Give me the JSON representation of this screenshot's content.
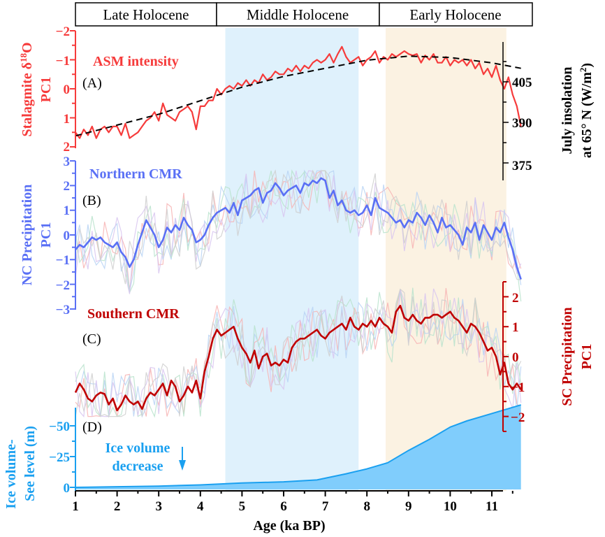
{
  "chart_data": {
    "type": "line",
    "x": {
      "label": "Age (ka BP)",
      "range": [
        1,
        11.7
      ],
      "ticks": [
        "1",
        "2",
        "3",
        "4",
        "5",
        "6",
        "7",
        "8",
        "9",
        "10",
        "11"
      ]
    },
    "periods": [
      {
        "label": "Late Holocene",
        "range": [
          1,
          4.4
        ]
      },
      {
        "label": "Middle Holocene",
        "range": [
          4.4,
          8.3
        ]
      },
      {
        "label": "Early Holocene",
        "range": [
          8.3,
          11.3
        ]
      }
    ],
    "shaded_bands": [
      {
        "name": "middle-band",
        "range": [
          4.6,
          7.8
        ],
        "color": "#dff1fc"
      },
      {
        "name": "early-band",
        "range": [
          8.45,
          11.35
        ],
        "color": "#fbf2e2"
      }
    ],
    "panels": [
      {
        "id": "A",
        "panel_label": "(A)",
        "series_label": "ASM intensity",
        "left_axis": {
          "title_line1": "Stalagmite δ18O",
          "title_line1_main": "Stalagmite δ",
          "title_line1_sup": "18",
          "title_line1_end": "O",
          "title_line2": "PC1",
          "range": [
            -2,
            2
          ],
          "inverted": true,
          "ticks": [
            "−2",
            "−1",
            "0",
            "1",
            "2"
          ],
          "color": "#f63b3b"
        },
        "right_axis": {
          "title_line1": "July insolation",
          "title_line2_main": "at 65° N (W/m",
          "title_line2_sup": "2",
          "title_line2_end": ")",
          "range": [
            370,
            420
          ],
          "ticks": [
            "405",
            "390",
            "375"
          ],
          "color": "#000000"
        },
        "series": [
          {
            "name": "Stalagmite δ18O PC1",
            "color": "#f63b3b",
            "x": [
              1.0,
              1.1,
              1.2,
              1.3,
              1.4,
              1.5,
              1.6,
              1.7,
              1.8,
              1.9,
              2.0,
              2.1,
              2.2,
              2.3,
              2.4,
              2.5,
              2.6,
              2.7,
              2.8,
              2.9,
              3.0,
              3.1,
              3.2,
              3.3,
              3.4,
              3.5,
              3.6,
              3.7,
              3.8,
              3.9,
              4.0,
              4.1,
              4.2,
              4.3,
              4.4,
              4.5,
              4.6,
              4.7,
              4.8,
              4.9,
              5.0,
              5.1,
              5.2,
              5.3,
              5.4,
              5.5,
              5.6,
              5.7,
              5.8,
              5.9,
              6.0,
              6.1,
              6.2,
              6.3,
              6.4,
              6.5,
              6.6,
              6.7,
              6.8,
              6.9,
              7.0,
              7.1,
              7.2,
              7.3,
              7.4,
              7.5,
              7.6,
              7.7,
              7.8,
              7.9,
              8.0,
              8.1,
              8.2,
              8.3,
              8.4,
              8.5,
              8.6,
              8.7,
              8.8,
              8.9,
              9.0,
              9.1,
              9.2,
              9.3,
              9.4,
              9.5,
              9.6,
              9.7,
              9.8,
              9.9,
              10.0,
              10.1,
              10.2,
              10.3,
              10.4,
              10.5,
              10.6,
              10.7,
              10.8,
              10.9,
              11.0,
              11.1,
              11.2,
              11.3,
              11.4,
              11.5,
              11.6,
              11.7
            ],
            "values": [
              1.5,
              1.7,
              1.4,
              1.6,
              1.3,
              1.7,
              1.4,
              1.3,
              1.5,
              1.3,
              1.3,
              1.6,
              1.2,
              1.7,
              1.6,
              1.5,
              1.3,
              1.1,
              1.0,
              0.8,
              1.1,
              0.5,
              0.9,
              1.0,
              1.1,
              0.8,
              0.7,
              0.6,
              0.8,
              1.4,
              0.6,
              0.6,
              0.4,
              0.4,
              0.0,
              0.2,
              0.0,
              -0.1,
              0.0,
              -0.2,
              -0.1,
              -0.3,
              -0.1,
              -0.3,
              -0.2,
              -0.5,
              -0.3,
              -0.4,
              -0.6,
              -0.5,
              -0.5,
              -0.7,
              -0.6,
              -0.8,
              -0.6,
              -0.8,
              -0.7,
              -0.9,
              -1.0,
              -0.9,
              -1.0,
              -1.2,
              -0.9,
              -1.2,
              -1.45,
              -1.1,
              -0.9,
              -1.0,
              -1.1,
              -0.8,
              -1.0,
              -1.1,
              -1.3,
              -0.9,
              -1.1,
              -1.0,
              -1.2,
              -1.1,
              -1.2,
              -1.3,
              -1.2,
              -1.15,
              -1.2,
              -0.9,
              -1.15,
              -1.0,
              -1.2,
              -0.9,
              -0.9,
              -1.1,
              -0.8,
              -1.0,
              -0.9,
              -1.0,
              -0.8,
              -1.0,
              -0.7,
              -0.9,
              -0.5,
              -0.7,
              -0.4,
              -0.8,
              -0.3,
              0.0,
              -0.4,
              0.2,
              0.6,
              1.3
            ]
          },
          {
            "name": "July insolation at 65° N",
            "color": "#000000",
            "dashed": true,
            "axis": "right",
            "x": [
              1.0,
              2.0,
              3.0,
              4.0,
              5.0,
              6.0,
              7.0,
              8.0,
              9.0,
              10.0,
              11.0,
              11.7
            ],
            "values": [
              385,
              389,
              393,
              398,
              403,
              407,
              410,
              413,
              414.5,
              414,
              412,
              410
            ]
          }
        ]
      },
      {
        "id": "B",
        "panel_label": "(B)",
        "series_label": "Northern CMR",
        "left_axis": {
          "title_line1": "NC Precipitation",
          "title_line2": "PC1",
          "range": [
            -3,
            3
          ],
          "ticks": [
            "3",
            "2",
            "1",
            "0",
            "−1",
            "−2",
            "−3"
          ],
          "color": "#5a70f5"
        },
        "series": [
          {
            "name": "NC Precipitation PC1",
            "color": "#5a70f5",
            "x": [
              1.0,
              1.1,
              1.2,
              1.3,
              1.4,
              1.5,
              1.6,
              1.7,
              1.8,
              1.9,
              2.0,
              2.1,
              2.2,
              2.3,
              2.4,
              2.5,
              2.6,
              2.7,
              2.8,
              2.9,
              3.0,
              3.1,
              3.2,
              3.3,
              3.4,
              3.5,
              3.6,
              3.7,
              3.8,
              3.9,
              4.0,
              4.1,
              4.2,
              4.3,
              4.4,
              4.5,
              4.6,
              4.7,
              4.8,
              4.9,
              5.0,
              5.1,
              5.2,
              5.3,
              5.4,
              5.5,
              5.6,
              5.7,
              5.8,
              5.9,
              6.0,
              6.1,
              6.2,
              6.3,
              6.4,
              6.5,
              6.6,
              6.7,
              6.8,
              6.9,
              7.0,
              7.1,
              7.2,
              7.3,
              7.4,
              7.5,
              7.6,
              7.7,
              7.8,
              7.9,
              8.0,
              8.1,
              8.2,
              8.3,
              8.4,
              8.5,
              8.6,
              8.7,
              8.8,
              8.9,
              9.0,
              9.1,
              9.2,
              9.3,
              9.4,
              9.5,
              9.6,
              9.7,
              9.8,
              9.9,
              10.0,
              10.1,
              10.2,
              10.3,
              10.4,
              10.5,
              10.6,
              10.7,
              10.8,
              10.9,
              11.0,
              11.1,
              11.2,
              11.3,
              11.4,
              11.5,
              11.6,
              11.7
            ],
            "values": [
              -0.6,
              -0.4,
              -0.5,
              -0.3,
              -0.1,
              -0.2,
              -0.1,
              -0.3,
              -0.4,
              -0.5,
              -0.3,
              -0.7,
              -0.9,
              -1.3,
              -1.0,
              -0.4,
              0.1,
              0.6,
              0.3,
              0.0,
              -0.5,
              -0.2,
              0.3,
              0.1,
              0.4,
              0.2,
              0.7,
              0.4,
              0.2,
              -0.3,
              -0.2,
              0.0,
              0.4,
              0.7,
              0.9,
              1.0,
              1.1,
              0.9,
              1.3,
              0.8,
              1.4,
              1.5,
              1.6,
              1.8,
              1.9,
              1.3,
              1.7,
              1.8,
              2.1,
              1.9,
              1.6,
              1.8,
              1.9,
              2.0,
              1.7,
              2.1,
              2.0,
              2.2,
              2.1,
              2.3,
              2.2,
              1.5,
              1.8,
              1.2,
              1.4,
              1.0,
              0.9,
              1.0,
              0.8,
              0.9,
              1.2,
              0.8,
              1.5,
              1.1,
              1.0,
              0.9,
              0.7,
              0.5,
              0.6,
              0.3,
              0.6,
              0.5,
              0.9,
              0.7,
              0.4,
              0.8,
              0.5,
              0.1,
              0.7,
              0.3,
              0.4,
              0.2,
              0.0,
              -0.4,
              0.3,
              0.1,
              0.5,
              -0.2,
              0.4,
              0.1,
              -0.2,
              0.3,
              0.1,
              0.5,
              -0.1,
              -0.6,
              -1.3,
              -1.8
            ]
          }
        ],
        "background_series_colors": [
          "#f7b3b3",
          "#b9d3f5",
          "#b9e3cd",
          "#d8c5f0",
          "#cfcfcf"
        ]
      },
      {
        "id": "C",
        "panel_label": "(C)",
        "series_label": "Southern CMR",
        "right_axis": {
          "title_line1": "SC Precipitation",
          "title_line2": "PC1",
          "range": [
            -2.5,
            2.5
          ],
          "ticks": [
            "2",
            "1",
            "0",
            "−1",
            "−2"
          ],
          "color": "#c00000"
        },
        "series": [
          {
            "name": "SC Precipitation PC1",
            "color": "#c00000",
            "x": [
              1.0,
              1.1,
              1.2,
              1.3,
              1.4,
              1.5,
              1.6,
              1.7,
              1.8,
              1.9,
              2.0,
              2.1,
              2.2,
              2.3,
              2.4,
              2.5,
              2.6,
              2.7,
              2.8,
              2.9,
              3.0,
              3.1,
              3.2,
              3.3,
              3.4,
              3.5,
              3.6,
              3.7,
              3.8,
              3.9,
              4.0,
              4.1,
              4.2,
              4.3,
              4.4,
              4.5,
              4.6,
              4.7,
              4.8,
              4.9,
              5.0,
              5.1,
              5.2,
              5.3,
              5.4,
              5.5,
              5.6,
              5.7,
              5.8,
              5.9,
              6.0,
              6.1,
              6.2,
              6.3,
              6.4,
              6.5,
              6.6,
              6.7,
              6.8,
              6.9,
              7.0,
              7.1,
              7.2,
              7.3,
              7.4,
              7.5,
              7.6,
              7.7,
              7.8,
              7.9,
              8.0,
              8.1,
              8.2,
              8.3,
              8.4,
              8.5,
              8.6,
              8.7,
              8.8,
              8.9,
              9.0,
              9.1,
              9.2,
              9.3,
              9.4,
              9.5,
              9.6,
              9.7,
              9.8,
              9.9,
              10.0,
              10.1,
              10.2,
              10.3,
              10.4,
              10.5,
              10.6,
              10.7,
              10.8,
              10.9,
              11.0,
              11.1,
              11.2,
              11.3,
              11.4,
              11.5,
              11.6,
              11.7
            ],
            "values": [
              -1.2,
              -0.9,
              -1.1,
              -1.4,
              -1.5,
              -1.3,
              -1.2,
              -1.25,
              -1.6,
              -1.4,
              -1.8,
              -1.6,
              -1.3,
              -1.5,
              -1.6,
              -1.5,
              -1.75,
              -1.4,
              -1.2,
              -1.3,
              -1.1,
              -0.9,
              -1.3,
              -0.8,
              -1.0,
              -1.5,
              -1.3,
              -1.0,
              -1.2,
              -0.8,
              -1.4,
              -0.5,
              0.0,
              0.6,
              0.9,
              0.7,
              0.8,
              0.9,
              1.0,
              0.6,
              0.3,
              0.1,
              -0.2,
              0.2,
              -0.4,
              0.0,
              0.1,
              -0.3,
              -0.2,
              -0.3,
              -0.1,
              -0.2,
              0.3,
              0.5,
              0.6,
              0.6,
              0.7,
              0.8,
              0.9,
              0.7,
              0.6,
              0.8,
              0.9,
              1.0,
              1.1,
              0.9,
              1.3,
              1.0,
              0.9,
              1.1,
              1.0,
              1.2,
              1.0,
              1.3,
              1.1,
              1.0,
              0.8,
              1.5,
              1.7,
              1.3,
              1.2,
              1.4,
              1.2,
              1.1,
              1.3,
              1.3,
              1.4,
              1.4,
              1.3,
              1.4,
              1.5,
              1.3,
              1.2,
              1.0,
              0.8,
              1.1,
              1.0,
              0.8,
              0.5,
              0.2,
              0.3,
              0.0,
              -0.6,
              -0.2,
              -0.9,
              -1.1,
              -0.9,
              -1.1
            ]
          }
        ]
      },
      {
        "id": "D",
        "panel_label": "(D)",
        "series_label": "Ice volume\ndecrease",
        "series_label_line1": "Ice volume",
        "series_label_line2": "decrease",
        "left_axis": {
          "title_line1": "Ice volume-",
          "title_line2": "See level (m)",
          "range": [
            0,
            -65
          ],
          "ticks": [
            "−50",
            "−25",
            "0"
          ],
          "color": "#1aa0f0"
        },
        "series": [
          {
            "name": "Ice volume-See level",
            "color": "#1aa0f0",
            "fill": "#80cdfc",
            "type": "area",
            "x": [
              1.0,
              2.0,
              3.0,
              4.0,
              5.0,
              6.0,
              6.8,
              7.5,
              8.0,
              8.5,
              9.0,
              9.5,
              10.0,
              10.4,
              11.0,
              11.7
            ],
            "values": [
              0,
              -0.5,
              -1,
              -2,
              -3.5,
              -4.5,
              -6,
              -11,
              -15,
              -20,
              -30,
              -39,
              -49,
              -54,
              -60,
              -67
            ]
          }
        ]
      }
    ]
  }
}
